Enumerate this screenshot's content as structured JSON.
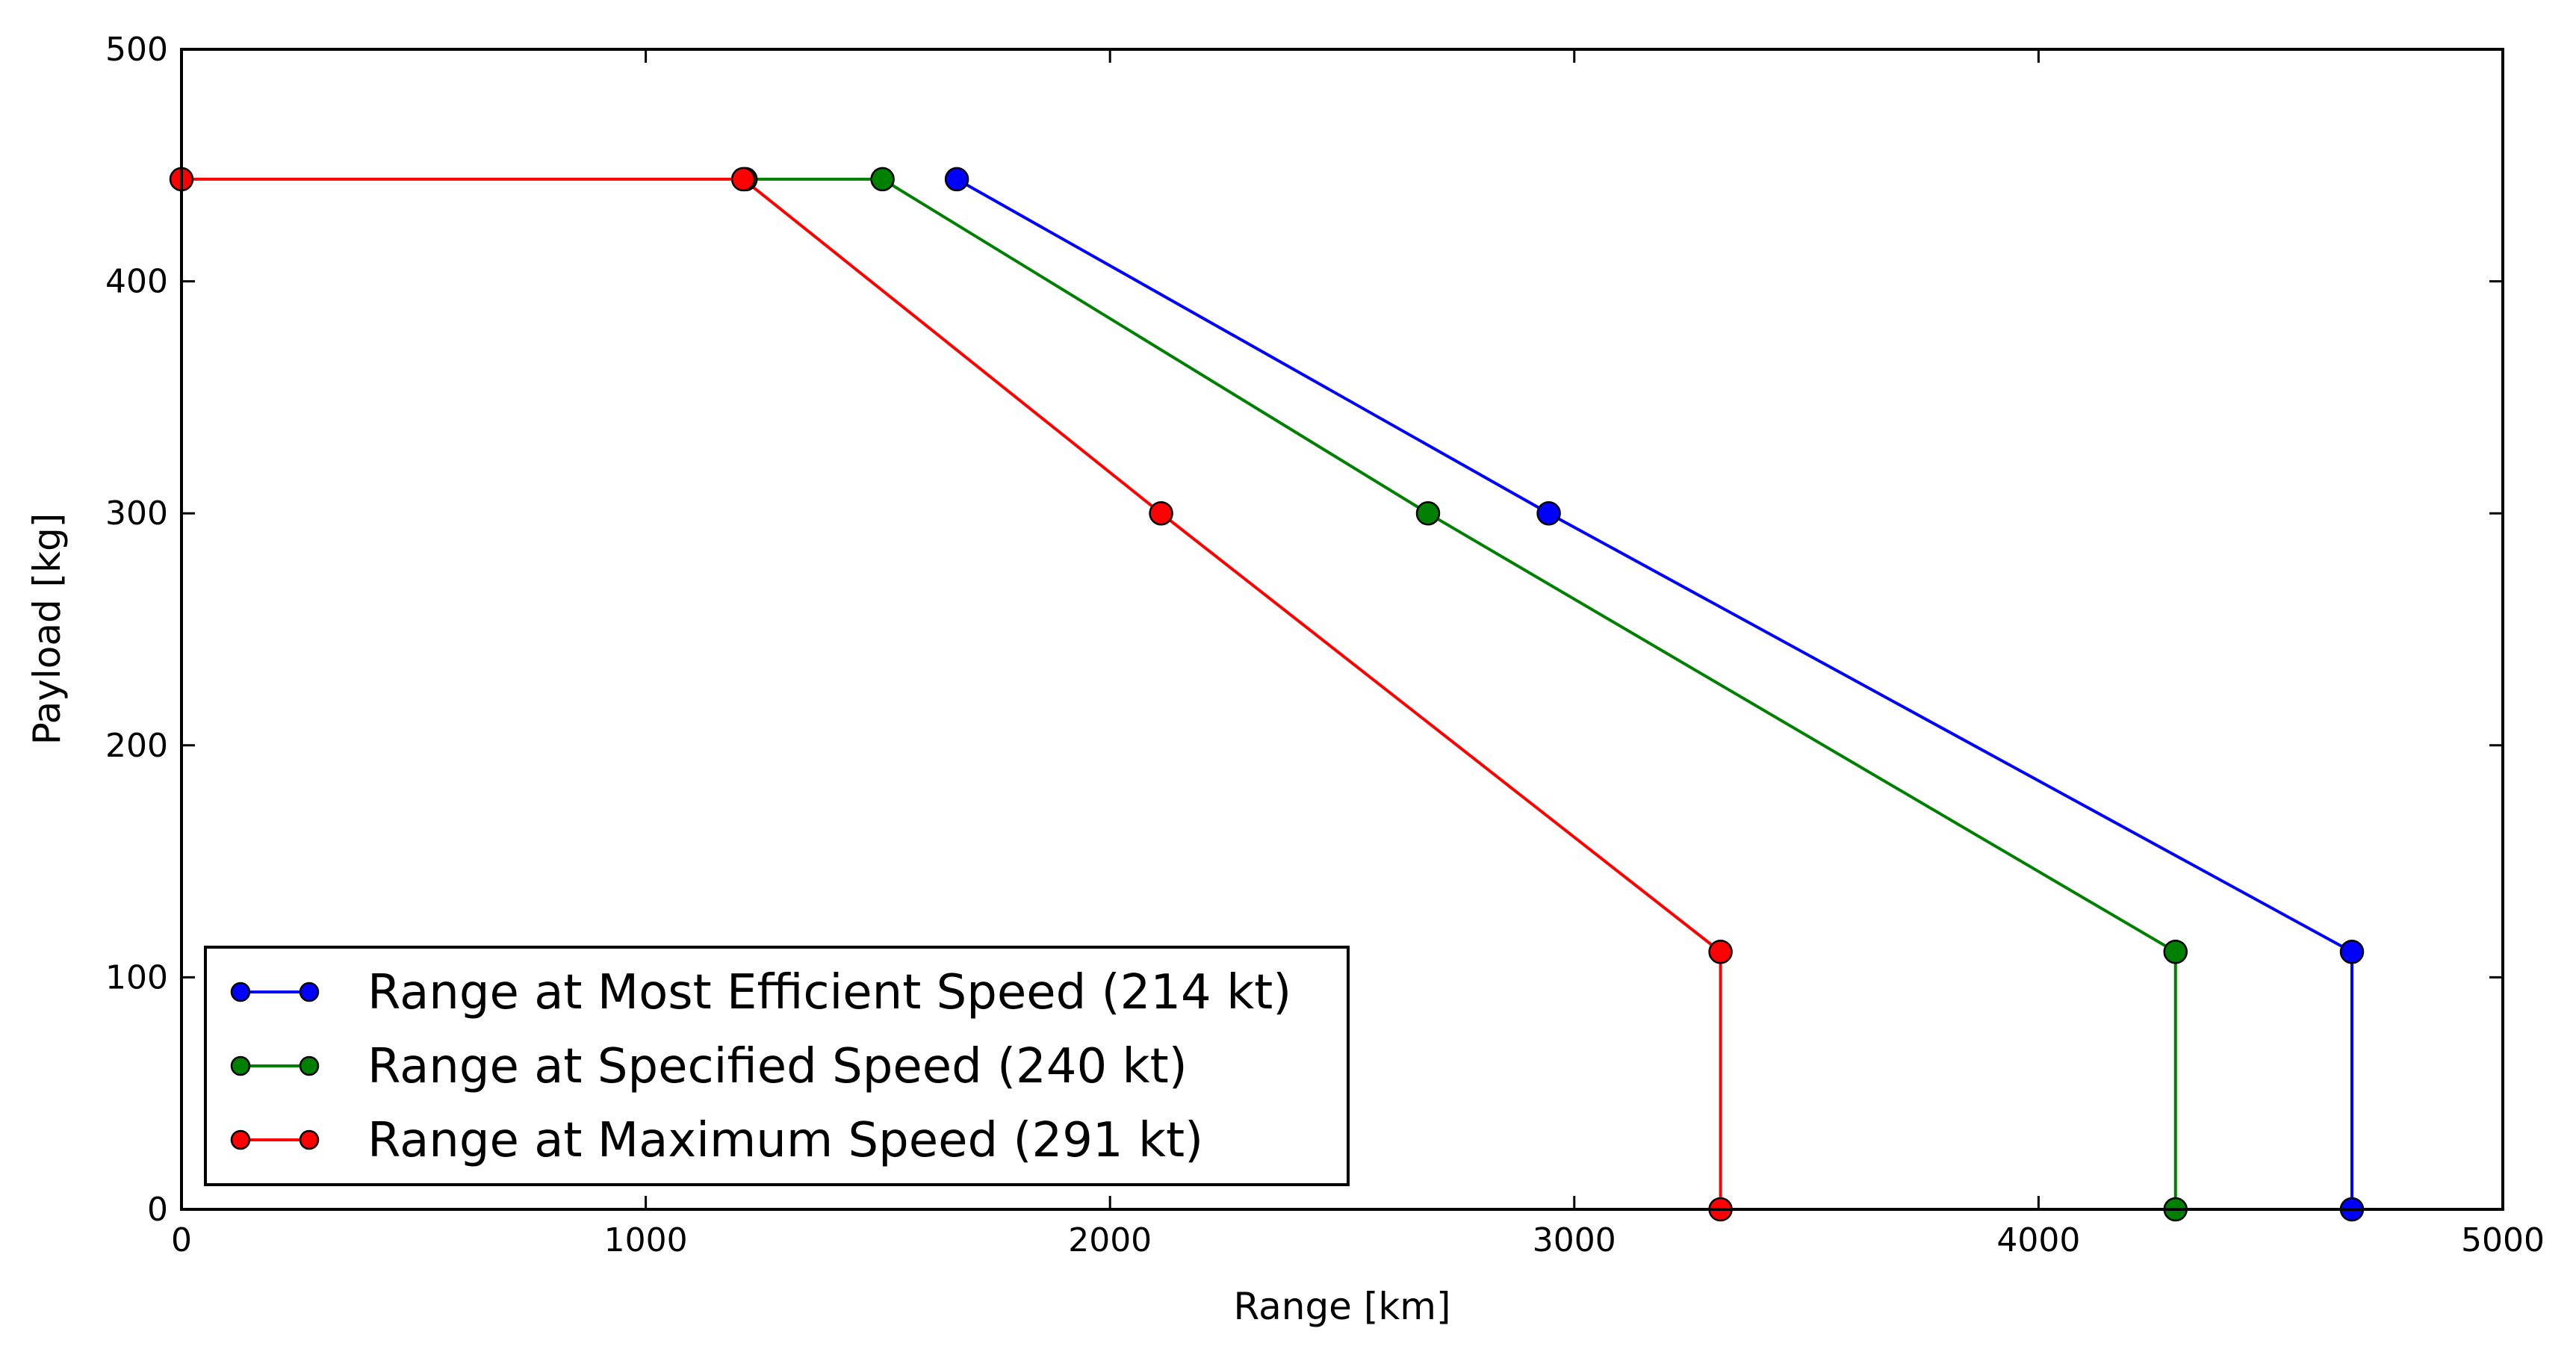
{
  "chart_data": {
    "type": "line",
    "xlabel": "Range [km]",
    "ylabel": "Payload [kg]",
    "xlim": [
      0,
      5000
    ],
    "ylim": [
      0,
      500
    ],
    "x_ticks": [
      0,
      1000,
      2000,
      3000,
      4000,
      5000
    ],
    "y_ticks": [
      0,
      100,
      200,
      300,
      400,
      500
    ],
    "x_tick_labels": [
      "0",
      "1000",
      "2000",
      "3000",
      "4000",
      "5000"
    ],
    "y_tick_labels": [
      "0",
      "100",
      "200",
      "300",
      "400",
      "500"
    ],
    "grid": false,
    "legend_position": "lower-left",
    "series": [
      {
        "name": "Range at Most Efficient Speed (214 kt)",
        "color": "#0000ff",
        "x": [
          1670,
          2945,
          4675,
          4675
        ],
        "y": [
          444,
          300,
          111,
          0
        ]
      },
      {
        "name": "Range at Specified Speed (240 kt)",
        "color": "#008000",
        "x": [
          1215,
          1510,
          2685,
          4295,
          4295
        ],
        "y": [
          444,
          444,
          300,
          111,
          0
        ]
      },
      {
        "name": "Range at Maximum Speed (291 kt)",
        "color": "#ff0000",
        "x": [
          0,
          1210,
          2110,
          3315,
          3315
        ],
        "y": [
          444,
          444,
          300,
          111,
          0
        ]
      }
    ]
  }
}
